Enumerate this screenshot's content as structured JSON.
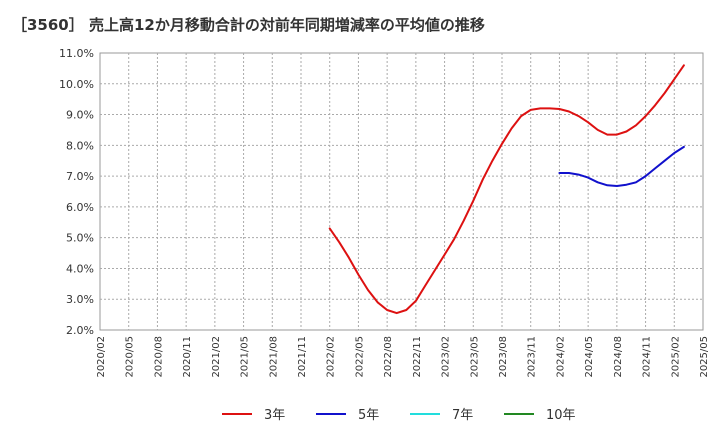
{
  "chart_data": {
    "type": "line",
    "title": "［3560］ 売上高12か月移動合計の対前年同期増減率の平均値の推移",
    "xlabel": "",
    "ylabel": "",
    "ylim": [
      2.0,
      11.0
    ],
    "yticks": [
      "2.0%",
      "3.0%",
      "4.0%",
      "5.0%",
      "6.0%",
      "7.0%",
      "8.0%",
      "9.0%",
      "10.0%",
      "11.0%"
    ],
    "x_categories": [
      "2020/02",
      "2020/05",
      "2020/08",
      "2020/11",
      "2021/02",
      "2021/05",
      "2021/08",
      "2021/11",
      "2022/02",
      "2022/05",
      "2022/08",
      "2022/11",
      "2023/02",
      "2023/05",
      "2023/08",
      "2023/11",
      "2024/02",
      "2024/05",
      "2024/08",
      "2024/11",
      "2025/02",
      "2025/05"
    ],
    "grid": true,
    "legend_position": "bottom",
    "series": [
      {
        "name": "3年",
        "color": "#dd1111",
        "start_index": 24,
        "values": [
          5.3,
          4.85,
          4.35,
          3.8,
          3.3,
          2.9,
          2.65,
          2.55,
          2.65,
          2.95,
          3.45,
          3.95,
          4.45,
          4.95,
          5.55,
          6.2,
          6.9,
          7.5,
          8.05,
          8.55,
          8.95,
          9.15,
          9.2,
          9.2,
          9.18,
          9.1,
          8.95,
          8.75,
          8.5,
          8.35,
          8.35,
          8.45,
          8.65,
          8.95,
          9.3,
          9.7,
          10.15,
          10.6
        ]
      },
      {
        "name": "5年",
        "color": "#1111cc",
        "start_index": 48,
        "values": [
          7.1,
          7.1,
          7.05,
          6.95,
          6.8,
          6.7,
          6.68,
          6.72,
          6.8,
          7.0,
          7.25,
          7.5,
          7.75,
          7.95
        ]
      },
      {
        "name": "7年",
        "color": "#22dddd",
        "start_index": 0,
        "values": []
      },
      {
        "name": "10年",
        "color": "#228822",
        "start_index": 0,
        "values": []
      }
    ]
  }
}
